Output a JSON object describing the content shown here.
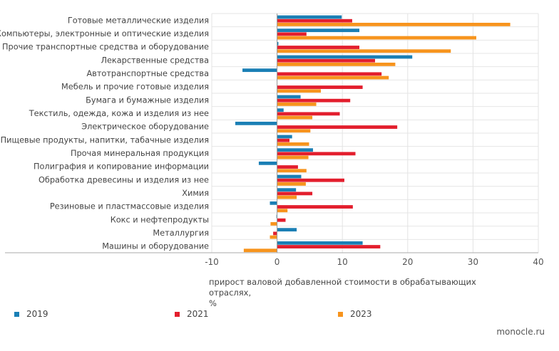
{
  "chart_data": {
    "type": "bar",
    "orientation": "horizontal",
    "title": "",
    "xlabel": "прирост валовой добавленной стоимости в обрабатывающих отраслях, %",
    "xlabel_lines": [
      "прирост валовой добавленной стоимости в обрабатывающих отраслях,",
      "%"
    ],
    "xlim": [
      -10,
      40
    ],
    "xticks": [
      -10,
      0,
      10,
      20,
      30,
      40
    ],
    "grid": true,
    "legend_position": "bottom",
    "categories": [
      "Готовые металлические изделия",
      "Компьютеры, электронные и оптические изделия",
      "Прочие транспортные средства и оборудование",
      "Лекарственные средства",
      "Автотранспортные средства",
      "Мебель и прочие готовые изделия",
      "Бумага и бумажные изделия",
      "Текстиль, одежда, кожа и изделия из нее",
      "Электрическое оборудование",
      "Пищевые  продукты,  напитки, табачные изделия",
      "Прочая минеральная продукция",
      "Полиграфия и копирование информации",
      "Обработка древесины и изделия из нее",
      "Химия",
      "Резиновые и пластмассовые изделия",
      "Кокс и нефтепродукты",
      "Металлургия",
      "Машины и оборудование"
    ],
    "series": [
      {
        "name": "2019",
        "color": "#1a7fb5",
        "values": [
          9.9,
          12.6,
          0.2,
          20.7,
          -5.3,
          0,
          3.6,
          1.0,
          -6.4,
          2.3,
          5.5,
          -2.8,
          3.7,
          2.9,
          -1.1,
          -0.1,
          3.0,
          13.1
        ]
      },
      {
        "name": "2021",
        "color": "#e31e2d",
        "values": [
          11.5,
          4.5,
          12.6,
          15.0,
          16.0,
          13.1,
          11.2,
          9.6,
          18.4,
          1.9,
          12.0,
          3.2,
          10.3,
          5.4,
          11.6,
          1.3,
          -0.6,
          15.8
        ]
      },
      {
        "name": "2023",
        "color": "#f7941d",
        "values": [
          35.7,
          30.5,
          26.6,
          18.1,
          17.1,
          6.7,
          6.0,
          5.4,
          5.1,
          4.9,
          4.8,
          4.5,
          4.4,
          3.0,
          1.6,
          -1.0,
          -1.1,
          -5.1
        ]
      }
    ]
  },
  "brand": "monocle.ru"
}
